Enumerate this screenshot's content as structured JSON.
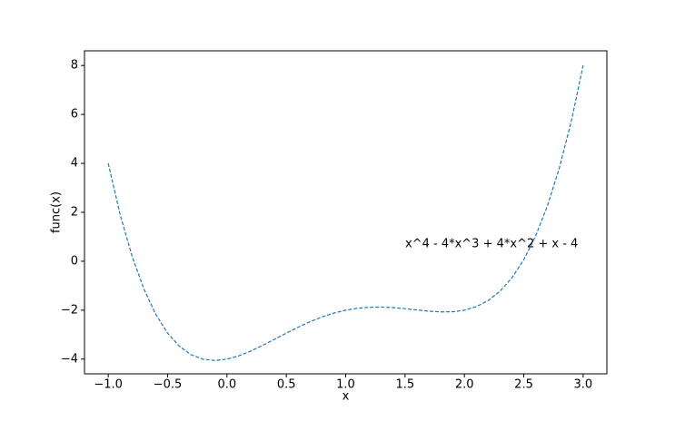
{
  "chart_data": {
    "type": "line",
    "xlabel": "x",
    "ylabel": "func(x)",
    "annotation": "x^4 - 4*x^3 + 4*x^2 + x - 4",
    "x": [
      -1.0,
      -0.9,
      -0.8,
      -0.7,
      -0.6,
      -0.5,
      -0.4,
      -0.3,
      -0.2,
      -0.1,
      0.0,
      0.1,
      0.2,
      0.3,
      0.4,
      0.5,
      0.6,
      0.7,
      0.8,
      0.9,
      1.0,
      1.1,
      1.2,
      1.3,
      1.4,
      1.5,
      1.6,
      1.7,
      1.8,
      1.9,
      2.0,
      2.1,
      2.2,
      2.3,
      2.4,
      2.5,
      2.6,
      2.7,
      2.8,
      2.9,
      3.0
    ],
    "values": [
      4,
      1.9121,
      0.2176,
      -1.1279,
      -2.1664,
      -2.9375,
      -3.4784,
      -3.8239,
      -4.0064,
      -4.0559,
      -4,
      -3.8639,
      -3.6704,
      -3.4399,
      -3.1904,
      -2.9375,
      -2.6944,
      -2.4719,
      -2.2784,
      -2.1199,
      -2,
      -1.9199,
      -1.8784,
      -1.8719,
      -1.8944,
      -1.9375,
      -1.9904,
      -2.0399,
      -2.0704,
      -2.0639,
      -2,
      -1.8559,
      -1.6064,
      -1.2239,
      -0.6784,
      0.0625,
      1.0336,
      2.2721,
      3.8176,
      5.7121,
      8
    ],
    "color": "#1f77b4",
    "line_style": "dashed",
    "xlim": [
      -1.2,
      3.2
    ],
    "ylim": [
      -4.6,
      8.6
    ],
    "xticks": [
      {
        "value": -1,
        "label": "−1.0"
      },
      {
        "value": -0.5,
        "label": "−0.5"
      },
      {
        "value": 0,
        "label": "0.0"
      },
      0.5,
      {
        "value": 1,
        "label": "1.0"
      },
      1.5,
      {
        "value": 2,
        "label": "2.0"
      },
      2.5,
      {
        "value": 3,
        "label": "3.0"
      }
    ],
    "yticks": [
      {
        "value": -4,
        "label": "−4"
      },
      {
        "value": -2,
        "label": "−2"
      },
      0,
      2,
      4,
      6,
      8
    ]
  }
}
